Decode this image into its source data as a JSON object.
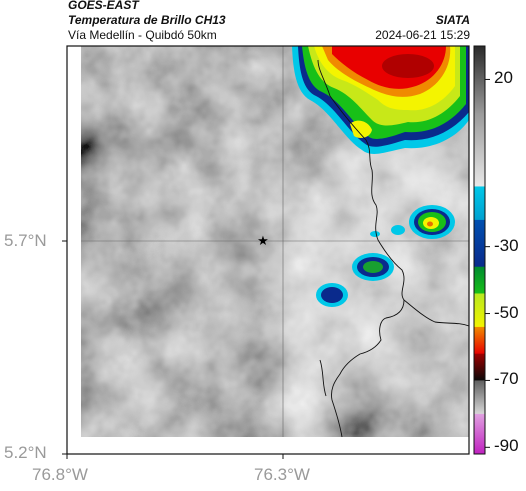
{
  "header": {
    "satellite": "GOES-EAST",
    "product": "Temperatura de Brillo CH13",
    "region": "Vía Medellín - Quibdó 50km",
    "agency": "SIATA",
    "timestamp": "2024-06-21 15:29"
  },
  "map": {
    "lat_labels": [
      "5.7°N",
      "5.2°N"
    ],
    "lon_labels": [
      "76.8°W",
      "76.3°W"
    ],
    "marker_icon": "star-icon"
  },
  "colorbar": {
    "tick_labels": [
      "20",
      "-30",
      "-50",
      "-70",
      "-90"
    ],
    "tick_values": [
      20,
      -30,
      -50,
      -70,
      -90
    ],
    "range": [
      30,
      -92
    ],
    "colors": {
      "warm_gray_top": "#2a2a2a",
      "gray_low": "#e8e8e8",
      "cyan": "#00c8e8",
      "blue": "#0a2a8c",
      "green": "#18c018",
      "yellow": "#f4f400",
      "red": "#e80000",
      "black": "#080808",
      "magenta": "#c020c0"
    }
  }
}
